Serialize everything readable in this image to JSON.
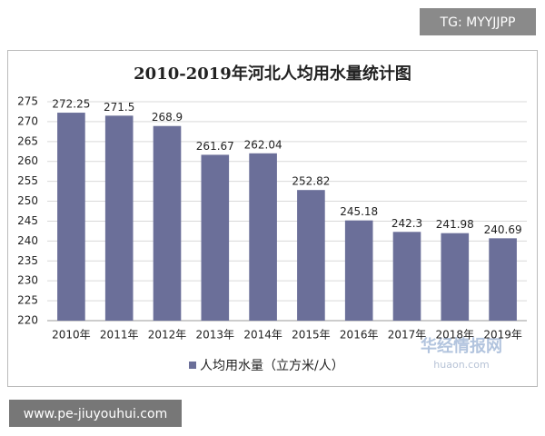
{
  "badge": "TG: MYYJJPP",
  "watermarks": [
    "www.pe-jiuyouhui.com",
    "华经情报网",
    "huaon.com"
  ],
  "chart_data": {
    "type": "bar",
    "title": "2010-2019年河北人均用水量统计图",
    "categories": [
      "2010年",
      "2011年",
      "2012年",
      "2013年",
      "2014年",
      "2015年",
      "2016年",
      "2017年",
      "2018年",
      "2019年"
    ],
    "series": [
      {
        "name": "人均用水量（立方米/人）",
        "color": "#6b6f99",
        "values": [
          272.25,
          271.5,
          268.9,
          261.67,
          262.04,
          252.82,
          245.18,
          242.3,
          241.98,
          240.69
        ]
      }
    ],
    "ylim": [
      220,
      275
    ],
    "yticks": [
      220,
      225,
      230,
      235,
      240,
      245,
      250,
      255,
      260,
      265,
      270,
      275
    ],
    "grid": true,
    "legend": "bottom"
  }
}
